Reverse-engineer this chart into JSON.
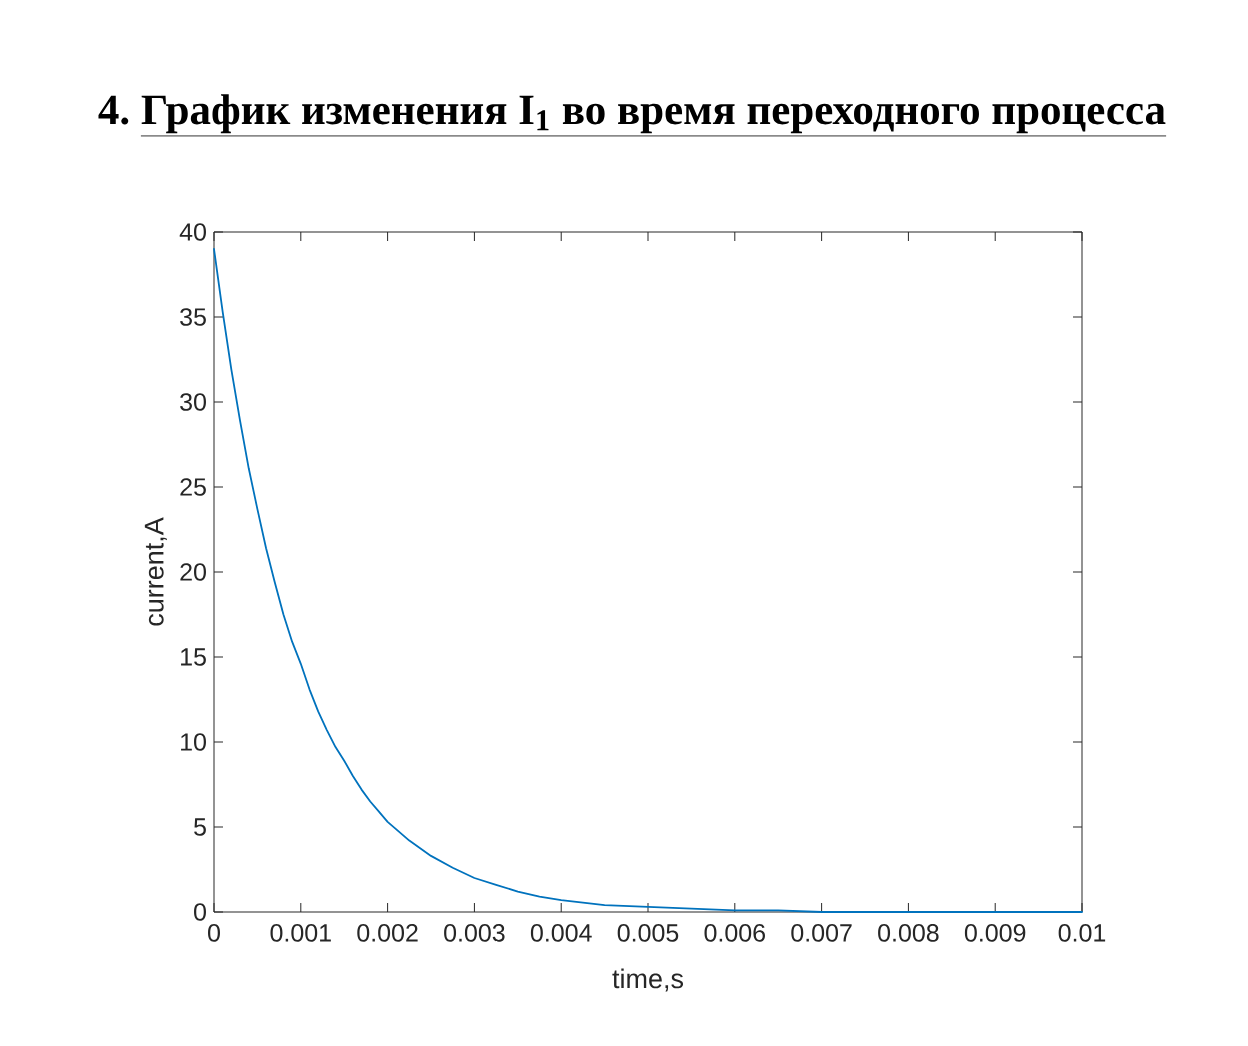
{
  "chart_data": {
    "type": "line",
    "title": "График изменения I$_{1}$ во время переходного процесса",
    "annotations": [
      "4."
    ],
    "xlabel": "time,s",
    "ylabel": "current,A",
    "x": [
      0,
      0.0001,
      0.0002,
      0.0003,
      0.0004,
      0.0005,
      0.0006,
      0.0007,
      0.0008,
      0.0009,
      0.001,
      0.0011,
      0.0012,
      0.0013,
      0.0014,
      0.0015,
      0.0016,
      0.0017,
      0.0018,
      0.0019,
      0.002,
      0.00225,
      0.0025,
      0.00275,
      0.003,
      0.00325,
      0.0035,
      0.00375,
      0.004,
      0.0045,
      0.005,
      0.0055,
      0.006,
      0.0065,
      0.007,
      0.008,
      0.009,
      0.01
    ],
    "values": [
      39.0,
      35.3,
      31.9,
      28.9,
      26.1,
      23.7,
      21.4,
      19.4,
      17.5,
      15.9,
      14.6,
      13.1,
      11.8,
      10.7,
      9.7,
      8.9,
      8.0,
      7.2,
      6.5,
      5.9,
      5.3,
      4.2,
      3.3,
      2.6,
      2.0,
      1.6,
      1.2,
      0.9,
      0.7,
      0.4,
      0.3,
      0.2,
      0.1,
      0.1,
      0.0,
      0.0,
      0.0,
      0.0
    ],
    "color": "#0072bd",
    "xlim": [
      0,
      0.01
    ],
    "ylim": [
      0,
      40
    ],
    "xticks": [
      0,
      0.001,
      0.002,
      0.003,
      0.004,
      0.005,
      0.006,
      0.007,
      0.008,
      0.009,
      0.01
    ],
    "yticks": [
      0,
      5,
      10,
      15,
      20,
      25,
      30,
      35,
      40
    ]
  }
}
